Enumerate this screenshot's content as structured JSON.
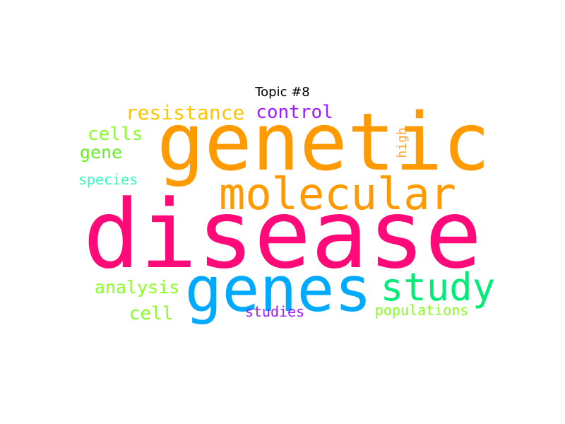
{
  "title": "Topic #8",
  "words": [
    {
      "text": "disease",
      "color": "#ff0a78"
    },
    {
      "text": "genetic",
      "color": "#ff9a00"
    },
    {
      "text": "molecular",
      "color": "#ff9a00"
    },
    {
      "text": "genes",
      "color": "#00aaff"
    },
    {
      "text": "study",
      "color": "#00ee77"
    },
    {
      "text": "resistance",
      "color": "#ffc400"
    },
    {
      "text": "control",
      "color": "#9b1cff"
    },
    {
      "text": "cells",
      "color": "#88ff22"
    },
    {
      "text": "gene",
      "color": "#66ee22"
    },
    {
      "text": "species",
      "color": "#33ffbb"
    },
    {
      "text": "high",
      "color": "#ffa430"
    },
    {
      "text": "analysis",
      "color": "#88ff22"
    },
    {
      "text": "cell",
      "color": "#88ff22"
    },
    {
      "text": "studies",
      "color": "#9b1cff"
    },
    {
      "text": "populations",
      "color": "#88ff22"
    }
  ]
}
